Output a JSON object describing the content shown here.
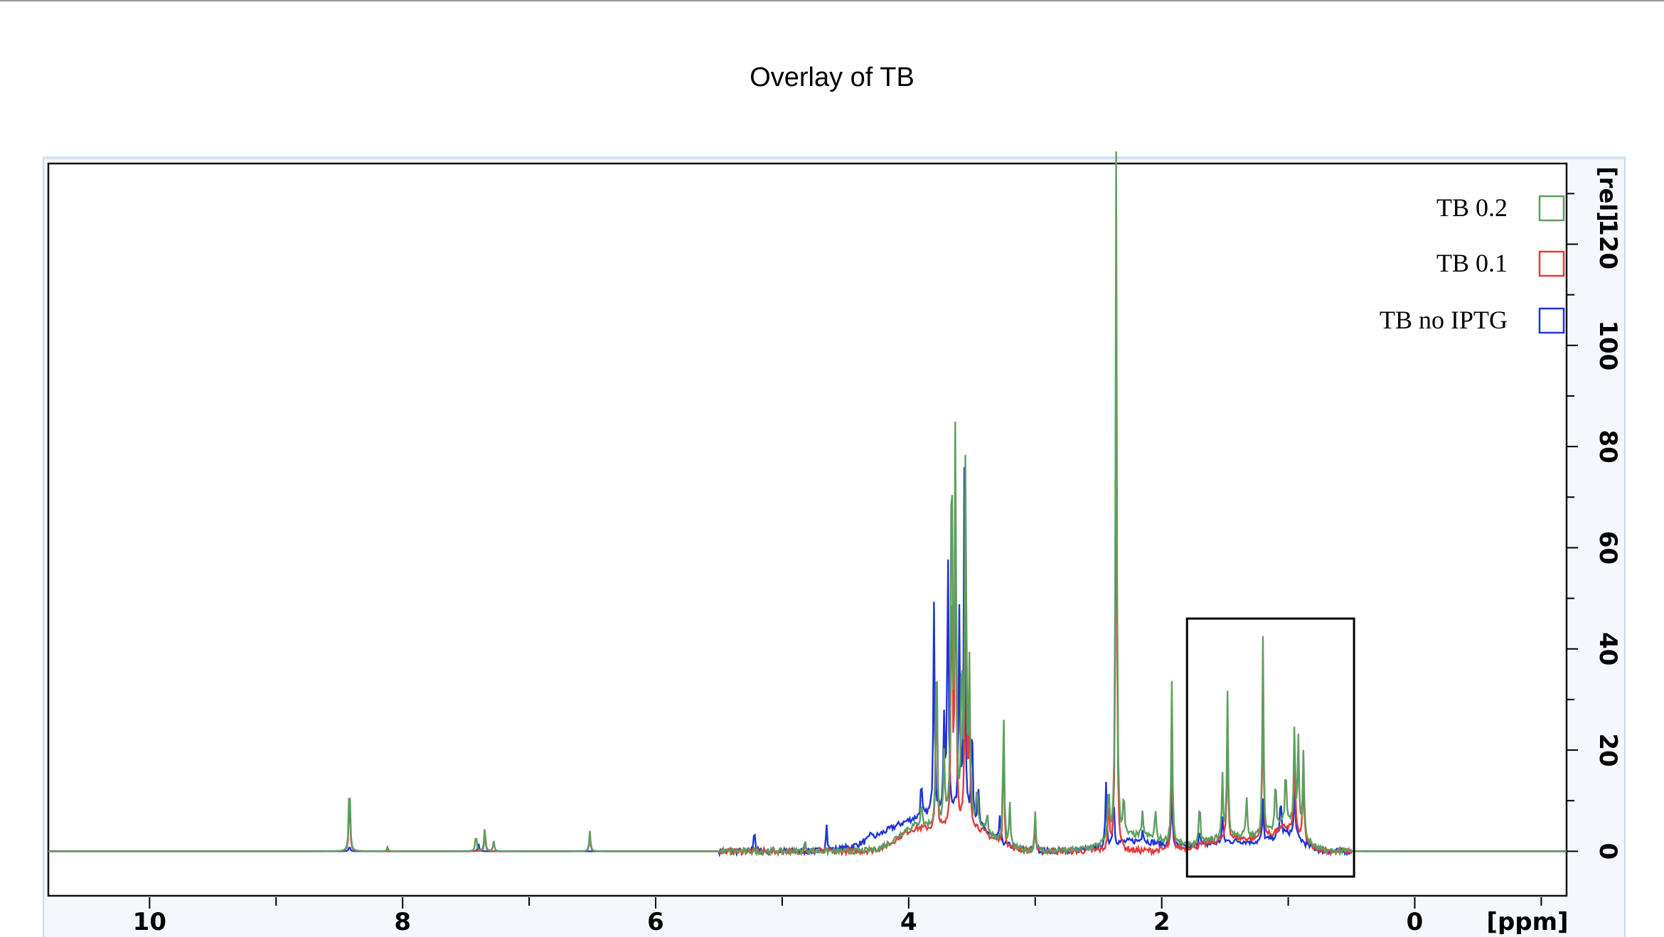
{
  "title": "Overlay of TB",
  "chart_data": {
    "type": "line",
    "title": "Overlay of TB",
    "xlabel": "[ppm]",
    "ylabel": "[rel]",
    "xlim": [
      10.8,
      -1.2
    ],
    "ylim": [
      -5,
      150
    ],
    "xticks": [
      10,
      8,
      6,
      4,
      2,
      0
    ],
    "xtick_labels": [
      "10",
      "8",
      "6",
      "4",
      "2",
      "0"
    ],
    "yticks": [
      0,
      20,
      40,
      60,
      80,
      100,
      120
    ],
    "ytick_labels": [
      "0",
      "20",
      "40",
      "60",
      "80",
      "100",
      "120"
    ],
    "legend_position": "top-right",
    "series": [
      {
        "name": "TB 0.2",
        "color": "#5f9e5f",
        "peaks": [
          [
            8.42,
            15
          ],
          [
            8.12,
            0.8
          ],
          [
            7.42,
            3.5
          ],
          [
            7.35,
            4.8
          ],
          [
            7.28,
            2
          ],
          [
            6.52,
            4
          ],
          [
            4.82,
            2
          ],
          [
            3.9,
            5
          ],
          [
            3.78,
            40
          ],
          [
            3.72,
            14
          ],
          [
            3.66,
            86
          ],
          [
            3.63,
            83
          ],
          [
            3.58,
            35
          ],
          [
            3.55,
            77
          ],
          [
            3.52,
            30
          ],
          [
            3.46,
            8
          ],
          [
            3.38,
            4
          ],
          [
            3.25,
            27
          ],
          [
            3.2,
            8
          ],
          [
            3.0,
            8
          ],
          [
            2.42,
            12
          ],
          [
            2.36,
            136
          ],
          [
            2.3,
            8
          ],
          [
            2.15,
            5
          ],
          [
            2.05,
            6
          ],
          [
            1.92,
            32
          ],
          [
            1.7,
            8
          ],
          [
            1.52,
            12
          ],
          [
            1.48,
            28
          ],
          [
            1.33,
            8
          ],
          [
            1.2,
            40
          ],
          [
            1.1,
            10
          ],
          [
            1.02,
            12
          ],
          [
            0.95,
            21
          ],
          [
            0.92,
            18
          ],
          [
            0.88,
            17
          ]
        ],
        "humps": [
          [
            3.95,
            4.5,
            0.2
          ],
          [
            3.55,
            6,
            0.25
          ],
          [
            2.2,
            3,
            0.3
          ],
          [
            1.4,
            3,
            0.35
          ],
          [
            1.0,
            5,
            0.15
          ]
        ]
      },
      {
        "name": "TB 0.1",
        "color": "#e23b3b",
        "peaks": [
          [
            8.42,
            11
          ],
          [
            7.35,
            3.5
          ],
          [
            6.52,
            3
          ],
          [
            4.82,
            1.5
          ],
          [
            3.78,
            35
          ],
          [
            3.66,
            58
          ],
          [
            3.63,
            68
          ],
          [
            3.55,
            60
          ],
          [
            3.52,
            25
          ],
          [
            3.25,
            22
          ],
          [
            3.0,
            6
          ],
          [
            2.42,
            10
          ],
          [
            2.36,
            111
          ],
          [
            1.92,
            26
          ],
          [
            1.48,
            23
          ],
          [
            1.2,
            32
          ],
          [
            0.95,
            17
          ],
          [
            0.88,
            14
          ]
        ],
        "humps": [
          [
            3.95,
            4,
            0.2
          ],
          [
            3.55,
            5,
            0.25
          ],
          [
            1.4,
            2.5,
            0.35
          ],
          [
            1.0,
            4,
            0.15
          ]
        ]
      },
      {
        "name": "TB no IPTG",
        "color": "#1f35d6",
        "peaks": [
          [
            8.42,
            1
          ],
          [
            7.4,
            1.5
          ],
          [
            5.22,
            5
          ],
          [
            4.65,
            5.5
          ],
          [
            4.3,
            2
          ],
          [
            3.9,
            7
          ],
          [
            3.8,
            42
          ],
          [
            3.72,
            18
          ],
          [
            3.69,
            54
          ],
          [
            3.6,
            40
          ],
          [
            3.56,
            68
          ],
          [
            3.5,
            22
          ],
          [
            3.45,
            7
          ],
          [
            3.28,
            5
          ],
          [
            3.0,
            6
          ],
          [
            2.44,
            12
          ],
          [
            2.38,
            10
          ],
          [
            2.15,
            3
          ],
          [
            1.92,
            12
          ],
          [
            1.7,
            4
          ],
          [
            1.52,
            5
          ],
          [
            1.2,
            8
          ],
          [
            1.06,
            8
          ],
          [
            0.95,
            10
          ]
        ],
        "humps": [
          [
            4.0,
            5,
            0.35
          ],
          [
            3.6,
            6,
            0.3
          ],
          [
            2.2,
            2,
            0.3
          ],
          [
            1.4,
            2,
            0.35
          ],
          [
            1.0,
            3,
            0.15
          ]
        ]
      }
    ],
    "annotation_box": {
      "x_range": [
        1.8,
        0.48
      ],
      "y_range": [
        -5,
        46
      ]
    }
  }
}
